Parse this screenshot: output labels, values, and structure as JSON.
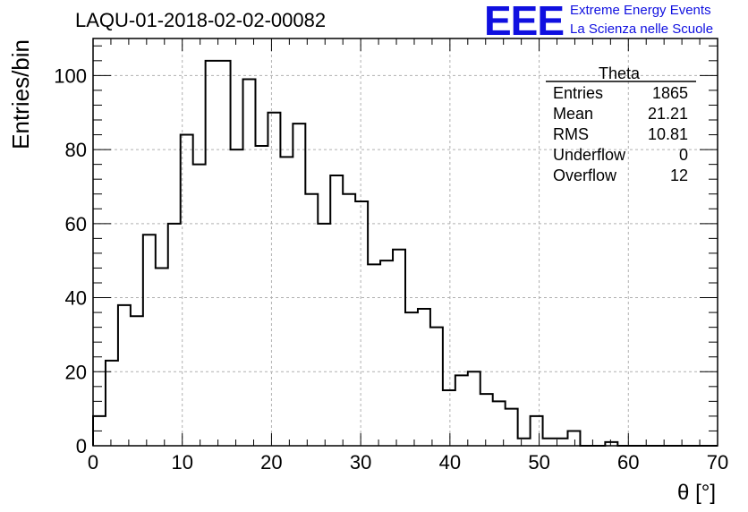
{
  "header": {
    "title": "LAQU-01-2018-02-02-00082",
    "logo_text": "EEE",
    "logo_line1": "Extreme Energy Events",
    "logo_line2": "La Scienza nelle Scuole",
    "logo_color": "#1010e0"
  },
  "chart_data": {
    "type": "histogram",
    "title": "LAQU-01-2018-02-02-00082",
    "xlabel": "θ [°]",
    "ylabel": "Entries/bin",
    "xlim": [
      0,
      70
    ],
    "ylim": [
      0,
      110
    ],
    "bin_width": 1.4,
    "x_ticks": [
      0,
      10,
      20,
      30,
      40,
      50,
      60,
      70
    ],
    "y_ticks": [
      0,
      20,
      40,
      60,
      80,
      100
    ],
    "grid": true,
    "bin_edges": [
      0,
      1.4,
      2.8,
      4.2,
      5.6,
      7.0,
      8.4,
      9.8,
      11.2,
      12.6,
      14.0,
      15.4,
      16.8,
      18.2,
      19.6,
      21.0,
      22.4,
      23.8,
      25.2,
      26.6,
      28.0,
      29.4,
      30.8,
      32.2,
      33.6,
      35.0,
      36.4,
      37.8,
      39.2,
      40.6,
      42.0,
      43.4,
      44.8,
      46.2,
      47.6,
      49.0,
      50.4,
      51.8,
      53.2,
      54.6,
      56.0,
      57.4,
      58.8,
      60.2,
      61.6,
      63.0,
      64.4,
      65.8,
      67.2,
      68.6,
      70.0
    ],
    "counts": [
      8,
      23,
      38,
      35,
      57,
      48,
      60,
      84,
      76,
      104,
      104,
      80,
      99,
      81,
      90,
      78,
      87,
      68,
      60,
      73,
      68,
      66,
      49,
      50,
      53,
      36,
      37,
      32,
      15,
      19,
      20,
      14,
      12,
      10,
      2,
      8,
      2,
      2,
      4,
      0,
      0,
      1,
      0,
      0,
      0,
      0,
      0,
      0,
      0,
      0
    ],
    "stats_box": {
      "title": "Theta",
      "rows": [
        {
          "label": "Entries",
          "value": "1865"
        },
        {
          "label": "Mean",
          "value": "21.21"
        },
        {
          "label": "RMS",
          "value": "10.81"
        },
        {
          "label": "Underflow",
          "value": "0"
        },
        {
          "label": "Overflow",
          "value": "12"
        }
      ]
    },
    "line_color": "#000000",
    "grid_color": "#b0b0b0"
  }
}
